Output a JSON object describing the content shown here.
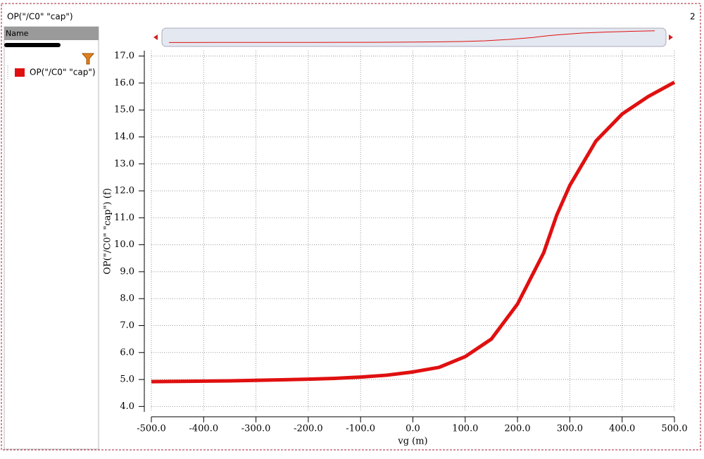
{
  "window": {
    "title": "OP(\"/C0\" \"cap\")",
    "corner": "2"
  },
  "panel": {
    "header": "Name",
    "items": [
      "OP(\"/C0\" \"cap\")"
    ]
  },
  "chart_data": {
    "type": "line",
    "xlabel": "vg (m)",
    "ylabel": "OP(\"/C0\" \"cap\") (f)",
    "x": [
      -500,
      -450,
      -400,
      -350,
      -300,
      -250,
      -200,
      -150,
      -100,
      -50,
      0,
      50,
      100,
      150,
      200,
      225,
      250,
      275,
      300,
      350,
      400,
      450,
      500
    ],
    "series": [
      {
        "name": "OP(\"/C0\" \"cap\")",
        "color": "#e01010",
        "values": [
          4.92,
          4.93,
          4.94,
          4.95,
          4.97,
          4.99,
          5.01,
          5.04,
          5.09,
          5.16,
          5.28,
          5.45,
          5.85,
          6.5,
          7.8,
          8.75,
          9.7,
          11.1,
          12.2,
          13.85,
          14.85,
          15.5,
          16.03
        ]
      }
    ],
    "xlim": [
      -500,
      500
    ],
    "xticks": [
      {
        "value": -500,
        "label": "-500.0"
      },
      {
        "value": -400,
        "label": "-400.0"
      },
      {
        "value": -300,
        "label": "-300.0"
      },
      {
        "value": -200,
        "label": "-200.0"
      },
      {
        "value": -100,
        "label": "-100.0"
      },
      {
        "value": 0,
        "label": "0.0"
      },
      {
        "value": 100,
        "label": "100.0"
      },
      {
        "value": 200,
        "label": "200.0"
      },
      {
        "value": 300,
        "label": "300.0"
      },
      {
        "value": 400,
        "label": "400.0"
      },
      {
        "value": 500,
        "label": "500.0"
      }
    ],
    "ylim": [
      3.8,
      17.2
    ],
    "yticks": [
      {
        "value": 4,
        "label": "4.0"
      },
      {
        "value": 5,
        "label": "5.0"
      },
      {
        "value": 6,
        "label": "6.0"
      },
      {
        "value": 7,
        "label": "7.0"
      },
      {
        "value": 8,
        "label": "8.0"
      },
      {
        "value": 9,
        "label": "9.0"
      },
      {
        "value": 10,
        "label": "10.0"
      },
      {
        "value": 11,
        "label": "11.0"
      },
      {
        "value": 12,
        "label": "12.0"
      },
      {
        "value": 13,
        "label": "13.0"
      },
      {
        "value": 14,
        "label": "14.0"
      },
      {
        "value": 15,
        "label": "15.0"
      },
      {
        "value": 16,
        "label": "16.0"
      },
      {
        "value": 17,
        "label": "17.0"
      }
    ],
    "grid": true
  }
}
